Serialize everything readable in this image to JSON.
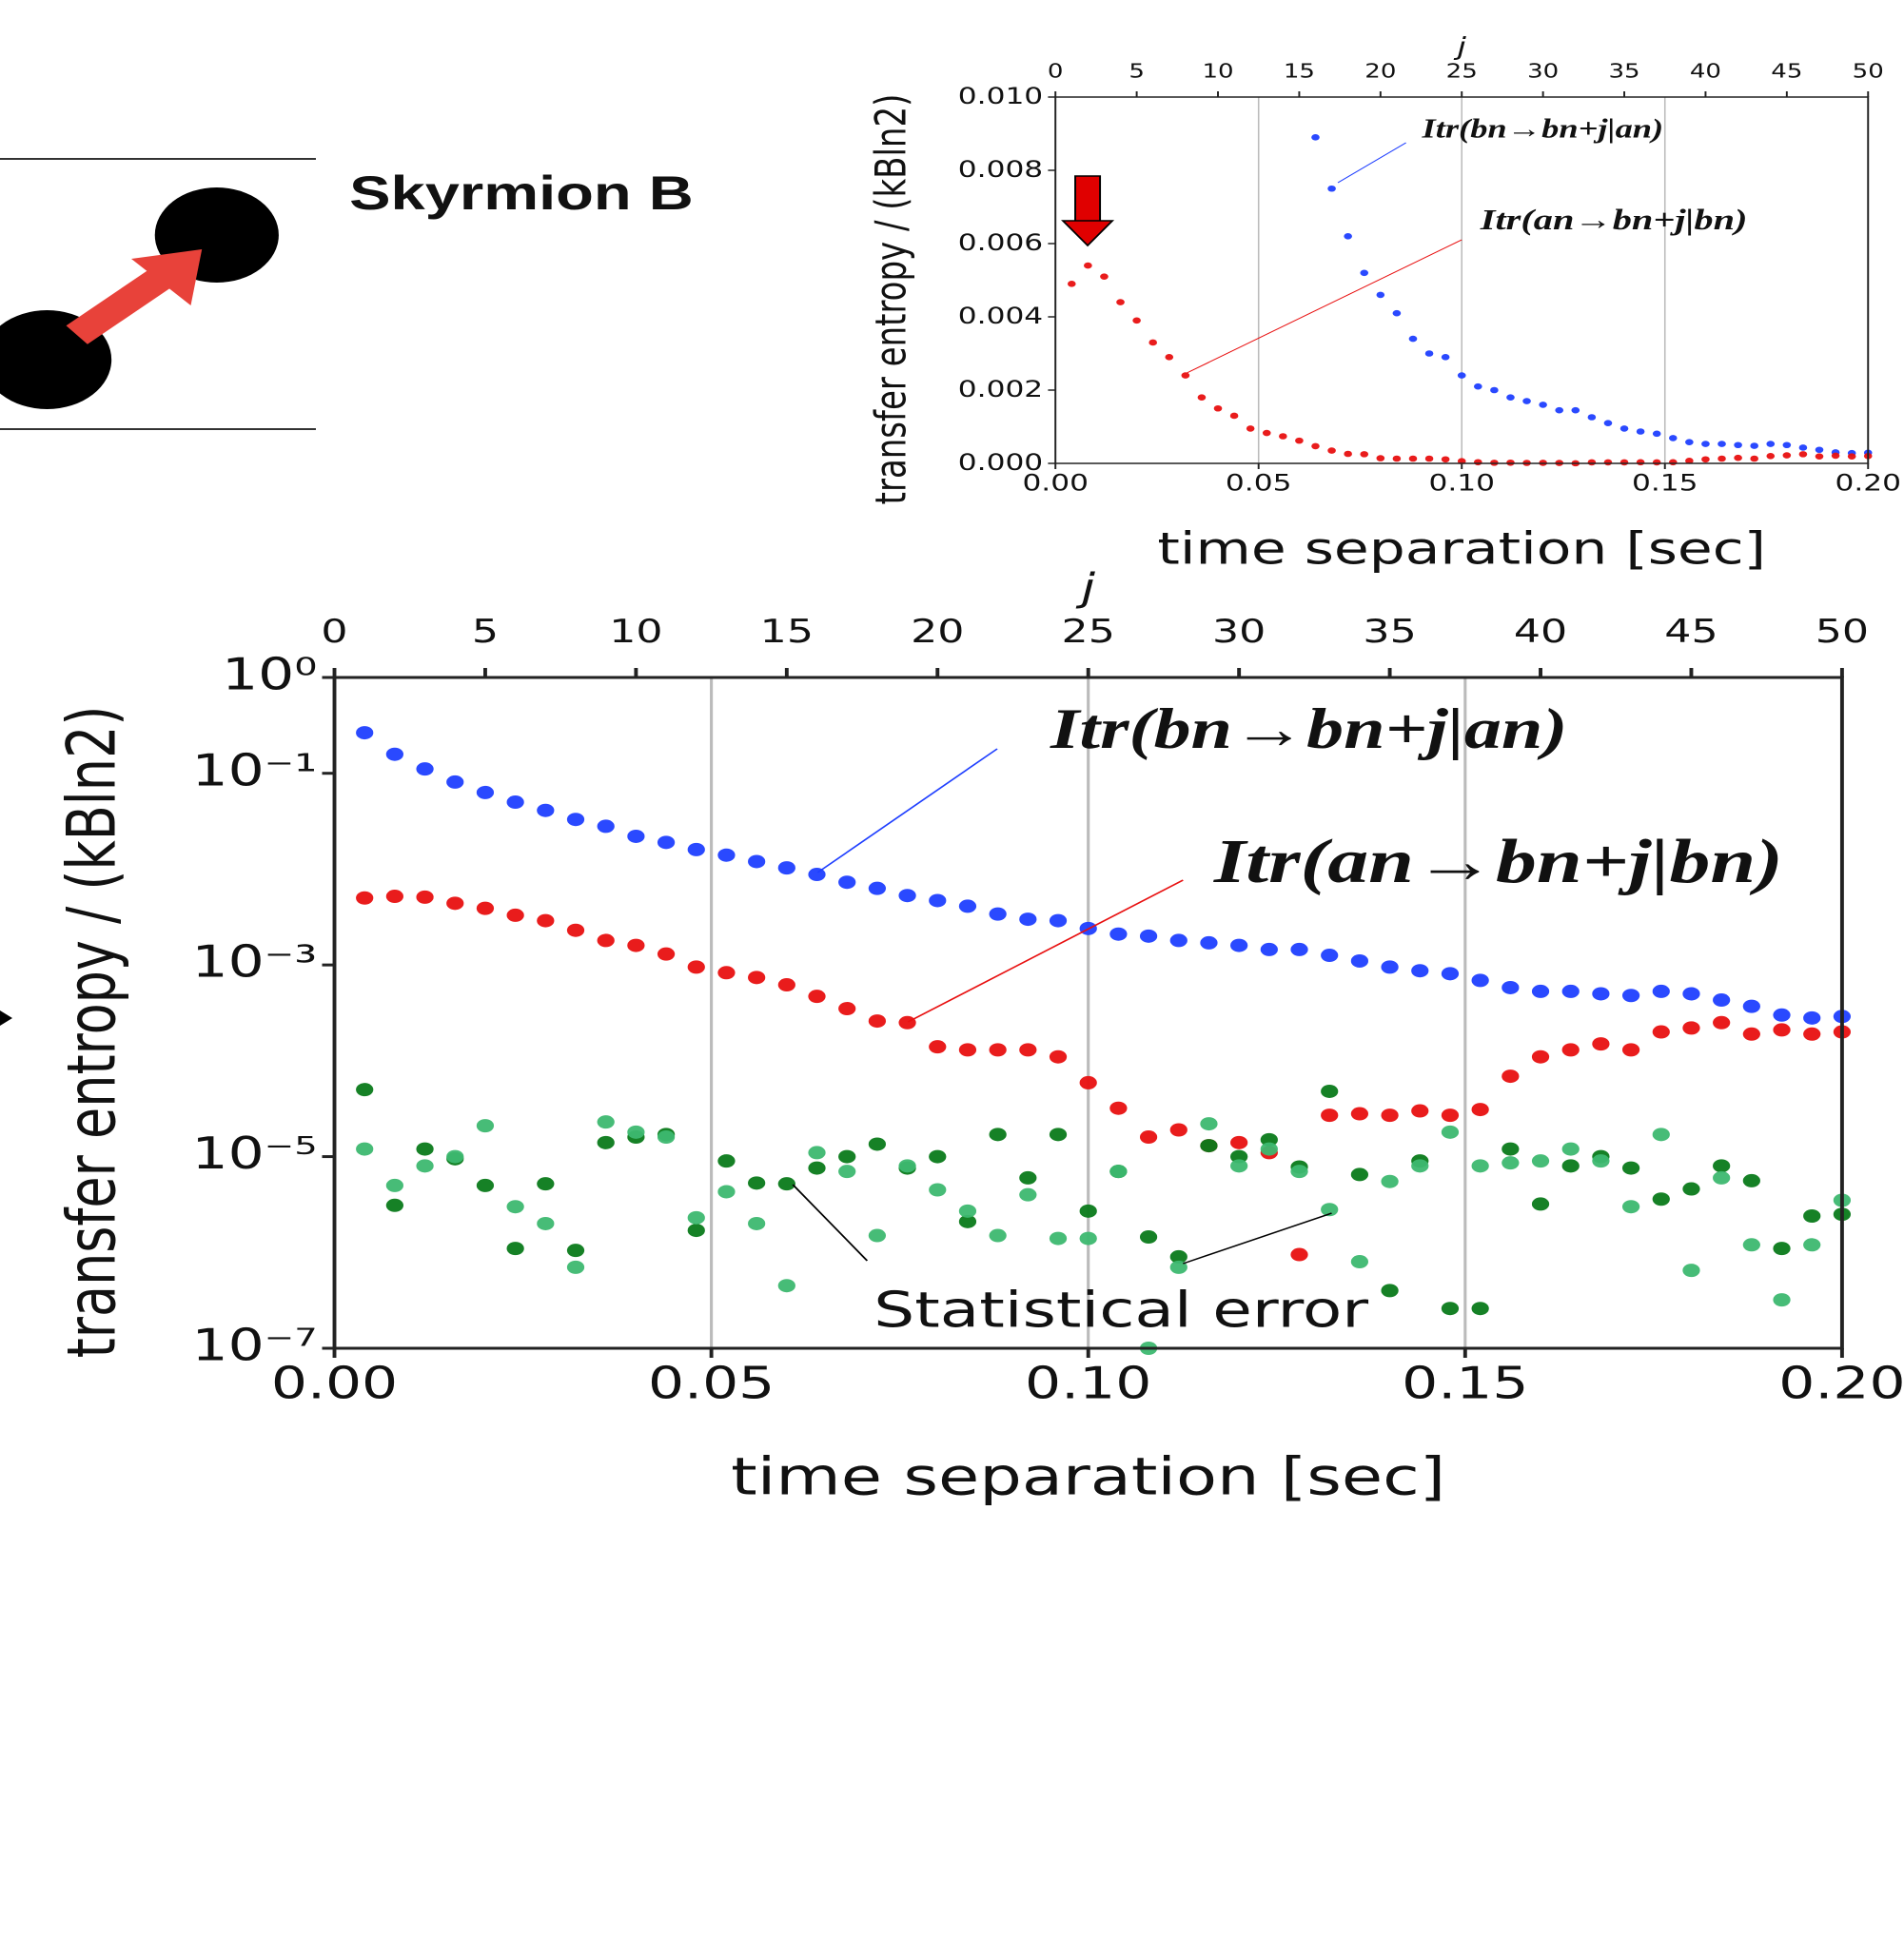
{
  "diagram": {
    "label": "Skyrmion B"
  },
  "chart_data": [
    {
      "type": "scatter",
      "xlabel": "time separation [sec]",
      "ylabel": "transfer entropy / (kBln2)",
      "x2label": "j",
      "xlim": [
        0,
        0.2
      ],
      "ylim": [
        0,
        0.01
      ],
      "x2lim": [
        0,
        50
      ],
      "xticks": [
        {
          "value": 0,
          "label": "0.00"
        },
        {
          "value": 0.05,
          "label": "0.05"
        },
        {
          "value": 0.1,
          "label": "0.10"
        },
        {
          "value": 0.15,
          "label": "0.15"
        },
        {
          "value": 0.2,
          "label": "0.20"
        }
      ],
      "yticks": [
        {
          "value": 0,
          "label": "0.000"
        },
        {
          "value": 0.002,
          "label": "0.002"
        },
        {
          "value": 0.004,
          "label": "0.004"
        },
        {
          "value": 0.006,
          "label": "0.006"
        },
        {
          "value": 0.008,
          "label": "0.008"
        },
        {
          "value": 0.01,
          "label": "0.010"
        }
      ],
      "x2ticks": [
        0,
        5,
        10,
        15,
        20,
        25,
        30,
        35,
        40,
        45,
        50
      ],
      "grid": "x",
      "x": [
        0.004,
        0.008,
        0.012,
        0.016,
        0.02,
        0.024,
        0.028,
        0.032,
        0.036,
        0.04,
        0.044,
        0.048,
        0.052,
        0.056,
        0.06,
        0.064,
        0.068,
        0.072,
        0.076,
        0.08,
        0.084,
        0.088,
        0.092,
        0.096,
        0.1,
        0.104,
        0.108,
        0.112,
        0.116,
        0.12,
        0.124,
        0.128,
        0.132,
        0.136,
        0.14,
        0.144,
        0.148,
        0.152,
        0.156,
        0.16,
        0.164,
        0.168,
        0.172,
        0.176,
        0.18,
        0.184,
        0.188,
        0.192,
        0.196,
        0.2
      ],
      "series": [
        {
          "name": "Itr(bn→bn+j|an)",
          "color": "#1f3fff",
          "values": [
            null,
            null,
            null,
            null,
            null,
            null,
            null,
            null,
            null,
            null,
            null,
            null,
            null,
            null,
            null,
            0.0089,
            0.0075,
            0.0062,
            0.0052,
            0.0046,
            0.0041,
            0.0034,
            0.003,
            0.0029,
            0.0024,
            0.0021,
            0.002,
            0.0018,
            0.0017,
            0.0016,
            0.00145,
            0.00145,
            0.00126,
            0.0011,
            0.00095,
            0.00087,
            0.00081,
            0.00069,
            0.00058,
            0.00053,
            0.00053,
            0.0005,
            0.00048,
            0.00053,
            0.0005,
            0.00043,
            0.00037,
            0.0003,
            0.00028,
            0.00029
          ]
        },
        {
          "name": "Itr(an→bn+j|bn)",
          "color": "#e81010",
          "values": [
            0.0049,
            0.0054,
            0.0051,
            0.0044,
            0.0039,
            0.0033,
            0.0029,
            0.0024,
            0.0018,
            0.0015,
            0.0013,
            0.00095,
            0.00083,
            0.00074,
            0.00062,
            0.00047,
            0.00035,
            0.00026,
            0.00025,
            0.00014,
            0.00013,
            0.00013,
            0.00013,
            0.00011,
            5.9e-05,
            3.2e-05,
            1.6e-05,
            1.9e-05,
            1.3e-05,
            1.4e-05,
            1.1e-05,
            9.5e-07,
            2.7e-05,
            2.8e-05,
            2.7e-05,
            3e-05,
            2.7e-05,
            3.1e-05,
            6.9e-05,
            0.00011,
            0.00013,
            0.00015,
            0.00013,
            0.0002,
            0.00022,
            0.00025,
            0.00019,
            0.00021,
            0.00019,
            0.0002
          ]
        }
      ]
    },
    {
      "type": "scatter",
      "ylog": true,
      "xlabel": "time separation [sec]",
      "ylabel": "transfer entropy / (kBln2)",
      "x2label": "j",
      "annotation": "Statistical error",
      "xlim": [
        0,
        0.2
      ],
      "ylim": [
        1e-07,
        1
      ],
      "x2lim": [
        0,
        50
      ],
      "xticks": [
        {
          "value": 0,
          "label": "0.00"
        },
        {
          "value": 0.05,
          "label": "0.05"
        },
        {
          "value": 0.1,
          "label": "0.10"
        },
        {
          "value": 0.15,
          "label": "0.15"
        },
        {
          "value": 0.2,
          "label": "0.20"
        }
      ],
      "yticks": [
        {
          "value": 1,
          "label": "10⁰"
        },
        {
          "value": 0.1,
          "label": "10⁻¹"
        },
        {
          "value": 0.001,
          "label": "10⁻³"
        },
        {
          "value": 1e-05,
          "label": "10⁻⁵"
        },
        {
          "value": 1e-07,
          "label": "10⁻⁷"
        }
      ],
      "x2ticks": [
        0,
        5,
        10,
        15,
        20,
        25,
        30,
        35,
        40,
        45,
        50
      ],
      "grid": "x",
      "x": [
        0.004,
        0.008,
        0.012,
        0.016,
        0.02,
        0.024,
        0.028,
        0.032,
        0.036,
        0.04,
        0.044,
        0.048,
        0.052,
        0.056,
        0.06,
        0.064,
        0.068,
        0.072,
        0.076,
        0.08,
        0.084,
        0.088,
        0.092,
        0.096,
        0.1,
        0.104,
        0.108,
        0.112,
        0.116,
        0.12,
        0.124,
        0.128,
        0.132,
        0.136,
        0.14,
        0.144,
        0.148,
        0.152,
        0.156,
        0.16,
        0.164,
        0.168,
        0.172,
        0.176,
        0.18,
        0.184,
        0.188,
        0.192,
        0.196,
        0.2
      ],
      "series": [
        {
          "name": "Itr(bn→bn+j|an)",
          "color": "#1f3fff",
          "values": [
            0.265,
            0.158,
            0.111,
            0.081,
            0.063,
            0.05,
            0.041,
            0.033,
            0.028,
            0.022,
            0.019,
            0.016,
            0.014,
            0.012,
            0.0103,
            0.0088,
            0.0073,
            0.0063,
            0.0053,
            0.0047,
            0.0041,
            0.0034,
            0.003,
            0.0029,
            0.0024,
            0.0021,
            0.002,
            0.0018,
            0.0017,
            0.0016,
            0.00145,
            0.00145,
            0.00126,
            0.0011,
            0.00095,
            0.00087,
            0.00081,
            0.00069,
            0.00058,
            0.00053,
            0.00053,
            0.0005,
            0.00048,
            0.00053,
            0.0005,
            0.00043,
            0.00037,
            0.0003,
            0.00028,
            0.00029
          ]
        },
        {
          "name": "Itr(an→bn+j|bn)",
          "color": "#e81010",
          "values": [
            0.005,
            0.0052,
            0.0051,
            0.0044,
            0.0039,
            0.0033,
            0.0029,
            0.0023,
            0.0018,
            0.0016,
            0.0013,
            0.00095,
            0.00083,
            0.00074,
            0.00062,
            0.00047,
            0.00035,
            0.00026,
            0.00025,
            0.00014,
            0.00013,
            0.00013,
            0.00013,
            0.00011,
            5.9e-05,
            3.2e-05,
            1.6e-05,
            1.9e-05,
            1.3e-05,
            1.4e-05,
            1.1e-05,
            9.5e-07,
            2.7e-05,
            2.8e-05,
            2.7e-05,
            3e-05,
            2.7e-05,
            3.1e-05,
            6.9e-05,
            0.00011,
            0.00013,
            0.00015,
            0.00013,
            0.0002,
            0.00022,
            0.00025,
            0.00019,
            0.00021,
            0.00019,
            0.0002
          ]
        },
        {
          "color": "#0a7a1a",
          "values": [
            5e-05,
            3.1e-06,
            1.2e-05,
            9.5e-06,
            5e-06,
            1.1e-06,
            5.2e-06,
            1.05e-06,
            1.4e-05,
            1.6e-05,
            1.7e-05,
            1.7e-06,
            9e-06,
            5.3e-06,
            5.2e-06,
            7.6e-06,
            1e-05,
            1.35e-05,
            7.6e-06,
            1e-05,
            2.1e-06,
            1.7e-05,
            6e-06,
            1.7e-05,
            2.7e-06,
            7e-06,
            1.45e-06,
            9e-07,
            1.3e-05,
            1e-05,
            1.5e-05,
            7.8e-06,
            4.8e-05,
            6.5e-06,
            4e-07,
            9e-06,
            2.6e-07,
            2.6e-07,
            1.2e-05,
            3.2e-06,
            8e-06,
            1e-05,
            7.6e-06,
            3.6e-06,
            4.6e-06,
            8e-06,
            5.6e-06,
            1.1e-06,
            2.4e-06,
            2.5e-06
          ]
        },
        {
          "color": "#3db870",
          "values": [
            1.2e-05,
            5e-06,
            8e-06,
            1e-05,
            2.1e-05,
            3e-06,
            2e-06,
            7e-07,
            2.3e-05,
            1.8e-05,
            1.6e-05,
            2.3e-06,
            4.3e-06,
            2e-06,
            4.5e-07,
            1.1e-05,
            7e-06,
            1.5e-06,
            8e-06,
            4.5e-06,
            2.7e-06,
            1.5e-06,
            4e-06,
            1.4e-06,
            1.4e-06,
            7e-06,
            1e-07,
            7e-07,
            2.2e-05,
            8e-06,
            1.2e-05,
            7e-06,
            2.8e-06,
            8e-07,
            5.5e-06,
            8e-06,
            1.8e-05,
            8e-06,
            8.6e-06,
            9e-06,
            1.2e-05,
            9e-06,
            3e-06,
            1.7e-05,
            6.5e-07,
            6e-06,
            1.2e-06,
            3.2e-07,
            1.2e-06,
            3.5e-06
          ]
        }
      ]
    }
  ]
}
